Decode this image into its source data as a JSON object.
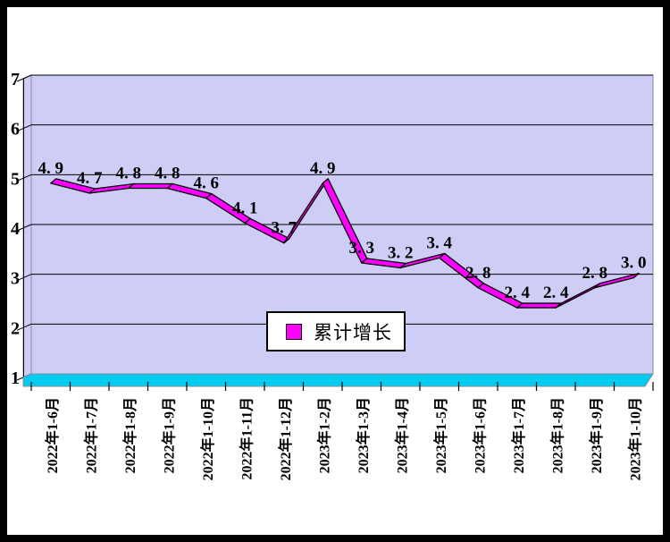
{
  "chart_data": {
    "type": "line",
    "style": "3d-ribbon",
    "title": "",
    "categories": [
      "2022年1-6月",
      "2022年1-7月",
      "2022年1-8月",
      "2022年1-9月",
      "2022年1-10月",
      "2022年1-11月",
      "2022年1-12月",
      "2023年1-2月",
      "2023年1-3月",
      "2023年1-4月",
      "2023年1-5月",
      "2023年1-6月",
      "2023年1-7月",
      "2023年1-8月",
      "2023年1-9月",
      "2023年1-10月"
    ],
    "series": [
      {
        "name": "累计增长",
        "values": [
          4.9,
          4.7,
          4.8,
          4.8,
          4.6,
          4.1,
          3.7,
          4.9,
          3.3,
          3.2,
          3.4,
          2.8,
          2.4,
          2.4,
          2.8,
          3.0
        ],
        "point_labels": [
          "4. 9",
          "4. 7",
          "4. 8",
          "4. 8",
          "4. 6",
          "4. 1",
          "3. 7",
          "4. 9",
          "3. 3",
          "3. 2",
          "3. 4",
          "2. 8",
          "2. 4",
          "2. 4",
          "2. 8",
          "3. 0"
        ],
        "color": "#FF00FF"
      }
    ],
    "ylim": [
      1,
      7
    ],
    "yticks": [
      "1",
      "2",
      "3",
      "4",
      "5",
      "6",
      "7"
    ],
    "grid": true,
    "legend": {
      "position": "center-bottom-overlay",
      "label": "累计增长",
      "swatch_color": "#FF00FF"
    },
    "colors": {
      "wall": "#CDCDF5",
      "floor": "#00CCF0",
      "line": "#FF00FF",
      "line_outline": "#000000",
      "gridline": "#000000",
      "wall_edge": "#8A8A9E",
      "background": "#FFFFFF",
      "frame": "#000000",
      "text": "#000000"
    }
  }
}
